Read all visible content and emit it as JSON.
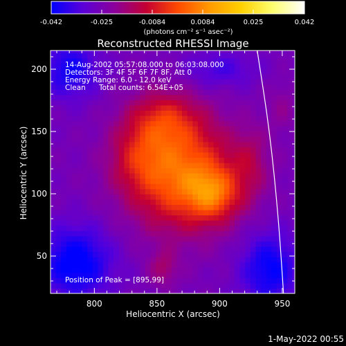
{
  "colorbar": {
    "ticks": [
      "-0.042",
      "-0.025",
      "-0.0084",
      "0.0084",
      "0.025",
      "0.042"
    ],
    "unit_label": "(photons cm⁻² s⁻¹ asec⁻²)",
    "colors": [
      "#0000ff",
      "#5a00d8",
      "#8b009b",
      "#c40032",
      "#ff4a00",
      "#ff9a00",
      "#ffd000",
      "#ffff70",
      "#ffffff"
    ]
  },
  "annotations": {
    "line1": "14-Aug-2002 05:57:08.000 to 06:03:08.000",
    "line2": "Detectors: 3F 4F 5F 6F 7F 8F, Att 0",
    "line3": "Energy Range: 6.0 - 12.0 keV",
    "line4a": "Clean",
    "line4b": "Total counts: 6.54E+05",
    "peak": "Position of Peak = [895,99]"
  },
  "footer_timestamp": "1-May-2022 00:55",
  "chart_data": {
    "type": "heatmap",
    "title": "Reconstructed RHESSI Image",
    "xlabel": "Heliocentric X (arcsec)",
    "ylabel": "Heliocentric Y (arcsec)",
    "xlim": [
      765,
      960
    ],
    "ylim": [
      20,
      215
    ],
    "xticks": [
      800,
      850,
      900,
      950
    ],
    "yticks": [
      50,
      100,
      150,
      200
    ],
    "color_range": [
      -0.042,
      0.042
    ],
    "peak": [
      895,
      99
    ],
    "limb_x": [
      930,
      940,
      947,
      951
    ],
    "limb_y": [
      215,
      150,
      80,
      20
    ],
    "sources": [
      {
        "x": 870,
        "y": 115,
        "sx": 30,
        "sy": 30,
        "amp": 0.03
      },
      {
        "x": 895,
        "y": 100,
        "sx": 14,
        "sy": 14,
        "amp": 0.018
      },
      {
        "x": 855,
        "y": 160,
        "sx": 20,
        "sy": 16,
        "amp": 0.016
      },
      {
        "x": 835,
        "y": 130,
        "sx": 16,
        "sy": 18,
        "amp": 0.01
      },
      {
        "x": 925,
        "y": 125,
        "sx": 10,
        "sy": 20,
        "amp": 0.008
      },
      {
        "x": 855,
        "y": 40,
        "sx": 8,
        "sy": 10,
        "amp": 0.009
      },
      {
        "x": 950,
        "y": 170,
        "sx": 8,
        "sy": 14,
        "amp": 0.005
      },
      {
        "x": 785,
        "y": 45,
        "sx": 20,
        "sy": 20,
        "amp": -0.018
      },
      {
        "x": 780,
        "y": 200,
        "sx": 16,
        "sy": 16,
        "amp": -0.014
      },
      {
        "x": 940,
        "y": 40,
        "sx": 16,
        "sy": 20,
        "amp": -0.016
      },
      {
        "x": 900,
        "y": 200,
        "sx": 20,
        "sy": 10,
        "amp": -0.008
      }
    ]
  }
}
